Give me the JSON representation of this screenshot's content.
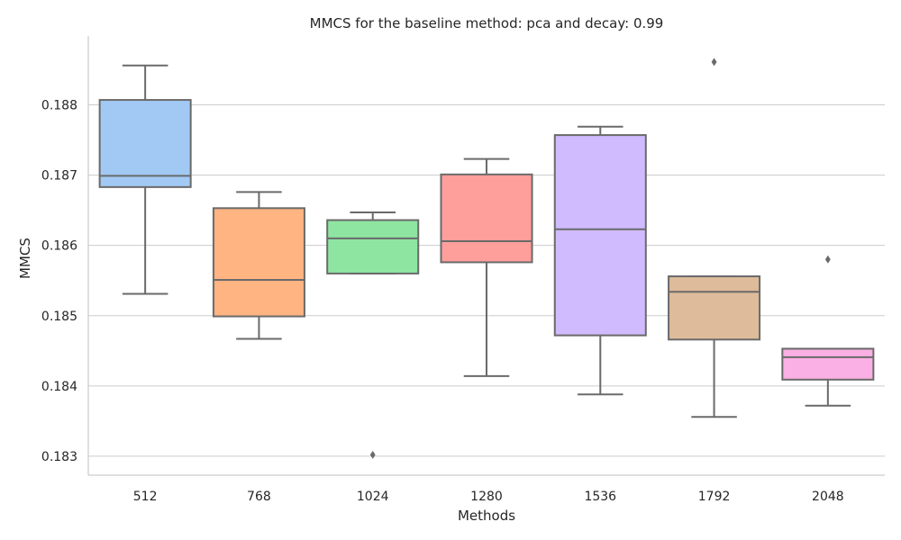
{
  "chart_data": {
    "type": "box",
    "title": "MMCS for the baseline method: pca and decay: 0.99",
    "xlabel": "Methods",
    "ylabel": "MMCS",
    "ylim": [
      0.18273,
      0.18898
    ],
    "yticks": [
      "0.183",
      "0.184",
      "0.185",
      "0.186",
      "0.187",
      "0.188"
    ],
    "grid": "horizontal",
    "categories": [
      "512",
      "768",
      "1024",
      "1280",
      "1536",
      "1792",
      "2048"
    ],
    "boxes": [
      {
        "category": "512",
        "color": "#a1c9f4",
        "whislo": 0.18531,
        "q1": 0.18683,
        "med": 0.18699,
        "q3": 0.18807,
        "whishi": 0.18856,
        "fliers": []
      },
      {
        "category": "768",
        "color": "#ffb482",
        "whislo": 0.18467,
        "q1": 0.18499,
        "med": 0.18551,
        "q3": 0.18653,
        "whishi": 0.18676,
        "fliers": []
      },
      {
        "category": "1024",
        "color": "#8de5a1",
        "whislo": 0.1856,
        "q1": 0.1856,
        "med": 0.1861,
        "q3": 0.18636,
        "whishi": 0.18647,
        "fliers": [
          0.18302
        ]
      },
      {
        "category": "1280",
        "color": "#ff9f9b",
        "whislo": 0.18414,
        "q1": 0.18576,
        "med": 0.18606,
        "q3": 0.18701,
        "whishi": 0.18723,
        "fliers": []
      },
      {
        "category": "1536",
        "color": "#d0bbff",
        "whislo": 0.18388,
        "q1": 0.18472,
        "med": 0.18623,
        "q3": 0.18757,
        "whishi": 0.18769,
        "fliers": []
      },
      {
        "category": "1792",
        "color": "#debb9b",
        "whislo": 0.18356,
        "q1": 0.18466,
        "med": 0.18534,
        "q3": 0.18556,
        "whishi": 0.18556,
        "fliers": [
          0.18861
        ]
      },
      {
        "category": "2048",
        "color": "#fab0e4",
        "whislo": 0.18372,
        "q1": 0.18409,
        "med": 0.18441,
        "q3": 0.18453,
        "whishi": 0.18453,
        "fliers": [
          0.1858
        ]
      }
    ]
  }
}
